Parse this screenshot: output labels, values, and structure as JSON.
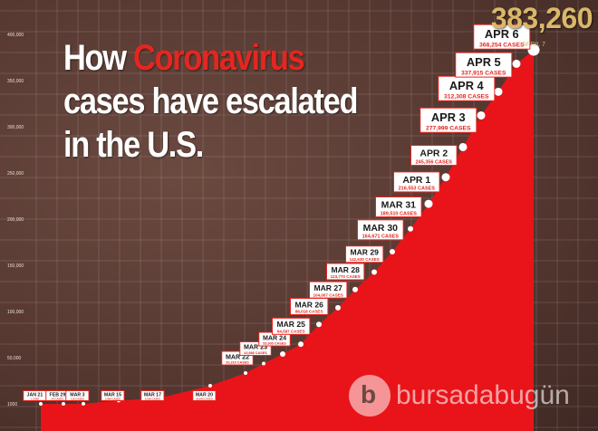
{
  "headline": {
    "before": "How ",
    "highlight": "Coronavirus",
    "line2": "cases have escalated",
    "line3": "in the U.S."
  },
  "total_label": "383,260",
  "watermark": {
    "mark": "b",
    "text": "bursadabugün"
  },
  "colors": {
    "area": "#e8141a",
    "label_border": "#e52620",
    "total": "#d9b86a",
    "background": "#563831"
  },
  "chart_data": {
    "type": "area",
    "title": "How Coronavirus cases have escalated in the U.S.",
    "xlabel": "",
    "ylabel": "",
    "yticks": [
      "1000",
      "50,000",
      "100,000",
      "150,000",
      "200,000",
      "250,000",
      "300,000",
      "350,000",
      "400,000"
    ],
    "ylim": [
      0,
      400000
    ],
    "grid": true,
    "points": [
      {
        "date": "JAN 21",
        "value": 1,
        "label": "JAN 21",
        "sub": "1 CASE"
      },
      {
        "date": "FEB 29",
        "value": 24,
        "label": "FEB 29",
        "sub": "24 CASES"
      },
      {
        "date": "MAR 3",
        "value": 118,
        "label": "MAR 3",
        "sub": "118 CASES"
      },
      {
        "date": "MAR 15",
        "value": 3499,
        "label": "MAR 15",
        "sub": "3,499 CASES"
      },
      {
        "date": "MAR 17",
        "value": 6196,
        "label": "MAR 17",
        "sub": "6,196 CASES"
      },
      {
        "date": "MAR 20",
        "value": 19643,
        "label": "MAR 20",
        "sub": "19,643 CASES"
      },
      {
        "date": "MAR 22",
        "value": 33316,
        "label": "MAR 22",
        "sub": "33,316 CASES"
      },
      {
        "date": "MAR 23",
        "value": 43666,
        "label": "MAR 23",
        "sub": "43,666 CASES"
      },
      {
        "date": "MAR 24",
        "value": 53905,
        "label": "MAR 24",
        "sub": "53,905 CASES"
      },
      {
        "date": "MAR 25",
        "value": 64597,
        "label": "MAR 25",
        "sub": "64,597 CASES"
      },
      {
        "date": "MAR 26",
        "value": 86018,
        "label": "MAR 26",
        "sub": "86,018 CASES"
      },
      {
        "date": "MAR 27",
        "value": 104007,
        "label": "MAR 27",
        "sub": "104,007 CASES"
      },
      {
        "date": "MAR 28",
        "value": 123770,
        "label": "MAR 28",
        "sub": "123,770 CASES"
      },
      {
        "date": "MAR 29",
        "value": 142630,
        "label": "MAR 29",
        "sub": "142,630 CASES"
      },
      {
        "date": "MAR 30",
        "value": 164671,
        "label": "MAR 30",
        "sub": "164,671 CASES"
      },
      {
        "date": "MAR 31",
        "value": 189510,
        "label": "MAR 31",
        "sub": "189,510 CASES"
      },
      {
        "date": "APR 1",
        "value": 216553,
        "label": "APR 1",
        "sub": "216,553 CASES"
      },
      {
        "date": "APR 2",
        "value": 245356,
        "label": "APR 2",
        "sub": "245,356 CASES"
      },
      {
        "date": "APR 3",
        "value": 277999,
        "label": "APR 3",
        "sub": "277,999 CASES"
      },
      {
        "date": "APR 4",
        "value": 312308,
        "label": "APR 4",
        "sub": "312,308 CASES"
      },
      {
        "date": "APR 5",
        "value": 337915,
        "label": "APR 5",
        "sub": "337,915 CASES"
      },
      {
        "date": "APR 6",
        "value": 368254,
        "label": "APR 6",
        "sub": "368,254 CASES"
      },
      {
        "date": "APRIL 7",
        "value": 383260,
        "label": "APRIL 7",
        "sub": ""
      }
    ]
  }
}
